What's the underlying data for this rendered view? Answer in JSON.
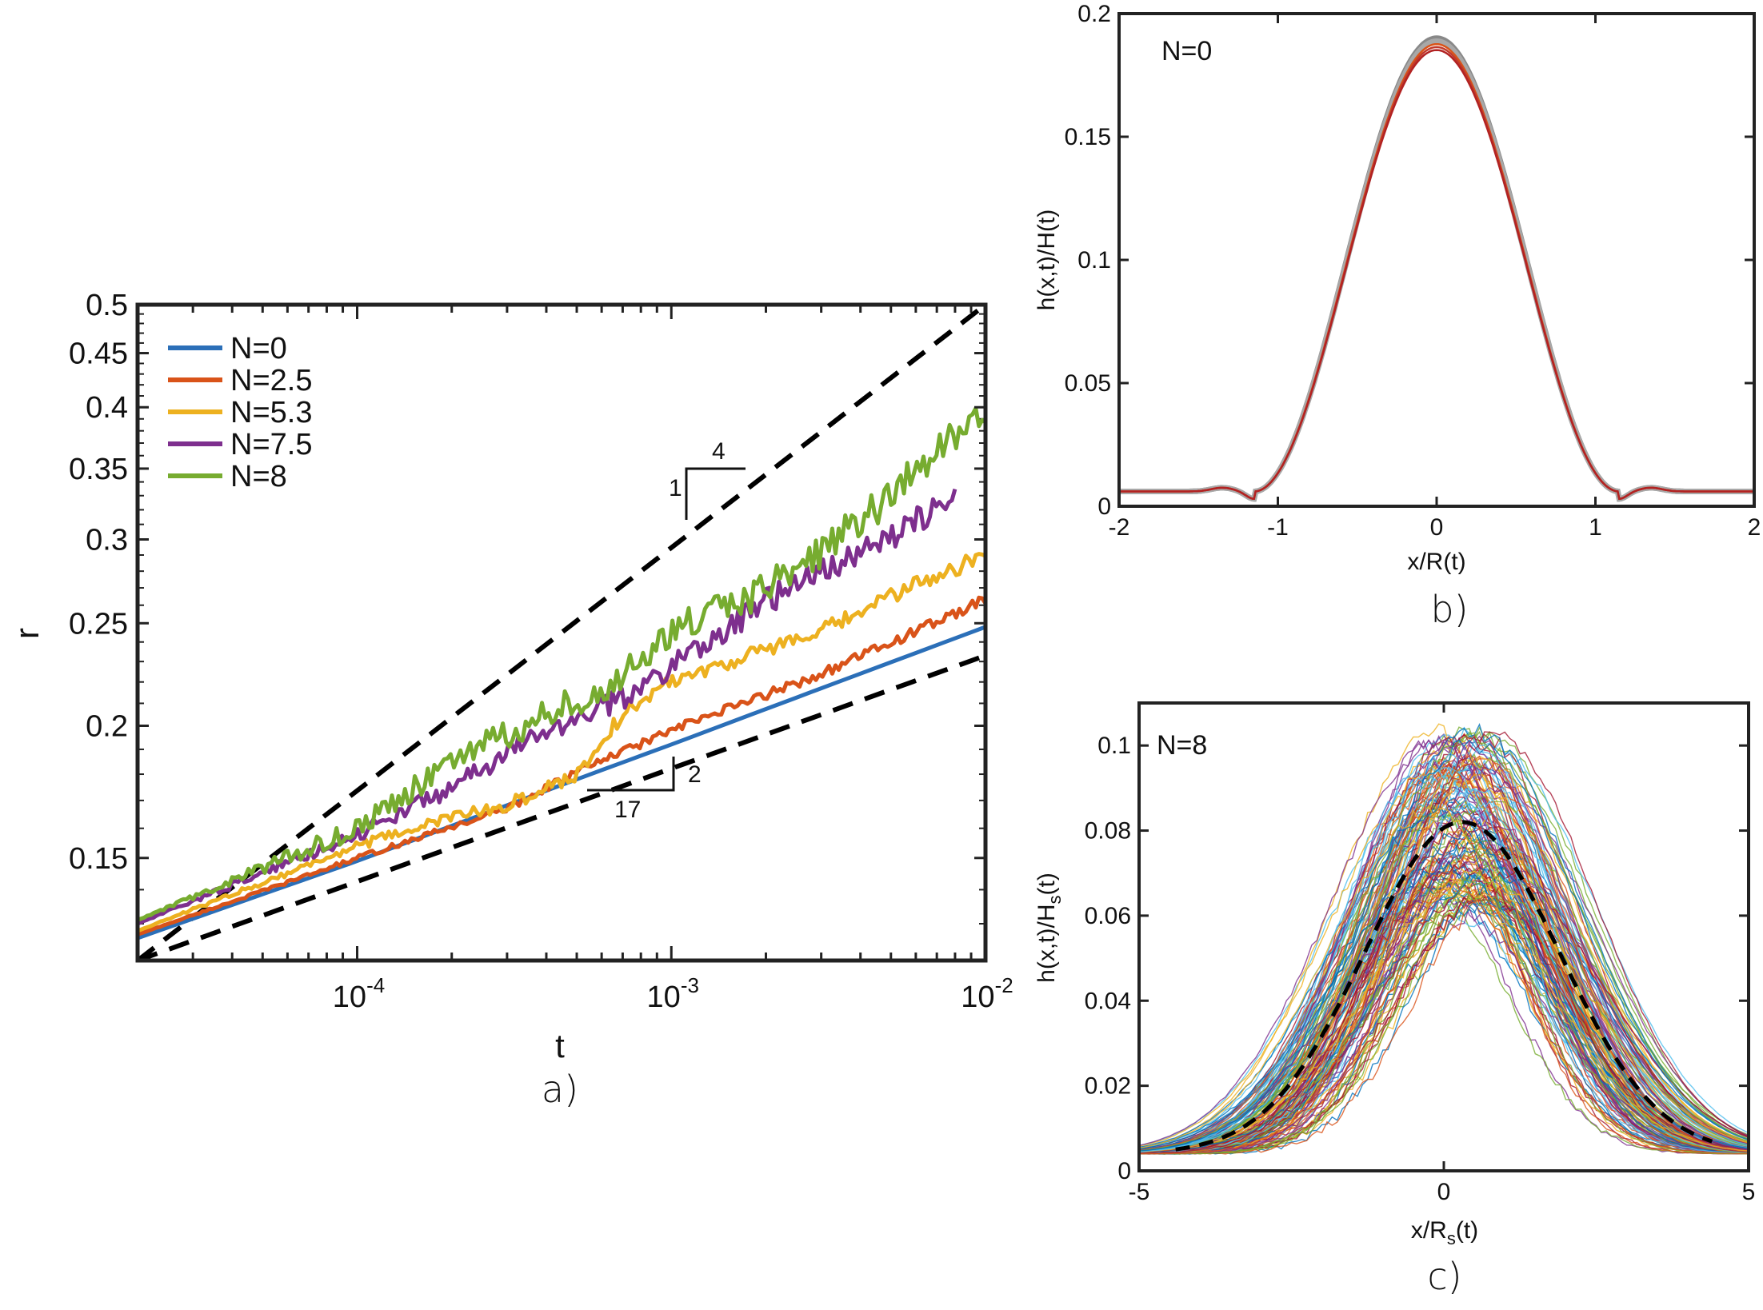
{
  "chart_data": [
    {
      "panel": "a)",
      "type": "line",
      "scale": "log-log",
      "xlabel": "t",
      "ylabel": "r",
      "xlim": [
        2e-05,
        0.01
      ],
      "ylim": [
        0.12,
        0.5
      ],
      "xtick_labels": [
        {
          "value": 0.0001,
          "base": "10",
          "exp": "-4"
        },
        {
          "value": 0.001,
          "base": "10",
          "exp": "-3"
        },
        {
          "value": 0.01,
          "base": "10",
          "exp": "-2"
        }
      ],
      "ytick_values": [
        0.15,
        0.2,
        0.25,
        0.3,
        0.35,
        0.4,
        0.45,
        0.5
      ],
      "ytick_labels": [
        "0.15",
        "0.2",
        "0.25",
        "0.3",
        "0.35",
        "0.4",
        "0.45",
        "0.5"
      ],
      "legend": "top-left",
      "series": [
        {
          "name": "N=0",
          "color": "#2b6fb8",
          "noise": 0,
          "points": [
            [
              2e-05,
              0.126
            ],
            [
              0.0001,
              0.149
            ],
            [
              0.0005,
              0.178
            ],
            [
              0.001,
              0.192
            ],
            [
              0.003,
              0.217
            ],
            [
              0.01,
              0.248
            ]
          ]
        },
        {
          "name": "N=2.5",
          "color": "#d95319",
          "noise": 0.003,
          "points": [
            [
              2e-05,
              0.127
            ],
            [
              0.0001,
              0.15
            ],
            [
              0.0003,
              0.167
            ],
            [
              0.0005,
              0.181
            ],
            [
              0.001,
              0.198
            ],
            [
              0.003,
              0.224
            ],
            [
              0.01,
              0.263
            ]
          ]
        },
        {
          "name": "N=5.3",
          "color": "#edb120",
          "noise": 0.006,
          "points": [
            [
              2e-05,
              0.128
            ],
            [
              0.0001,
              0.154
            ],
            [
              0.0002,
              0.164
            ],
            [
              0.0003,
              0.168
            ],
            [
              0.0005,
              0.18
            ],
            [
              0.0007,
              0.205
            ],
            [
              0.001,
              0.221
            ],
            [
              0.002,
              0.236
            ],
            [
              0.003,
              0.245
            ],
            [
              0.005,
              0.265
            ],
            [
              0.007,
              0.278
            ],
            [
              0.01,
              0.29
            ]
          ]
        },
        {
          "name": "N=7.5",
          "color": "#7e2f8e",
          "noise": 0.01,
          "points": [
            [
              2e-05,
              0.13
            ],
            [
              0.0001,
              0.158
            ],
            [
              0.0002,
              0.175
            ],
            [
              0.0004,
              0.198
            ],
            [
              0.0007,
              0.212
            ],
            [
              0.001,
              0.228
            ],
            [
              0.002,
              0.262
            ],
            [
              0.003,
              0.28
            ],
            [
              0.005,
              0.302
            ],
            [
              0.008,
              0.33
            ]
          ]
        },
        {
          "name": "N=8",
          "color": "#77ac30",
          "noise": 0.014,
          "points": [
            [
              2e-05,
              0.131
            ],
            [
              0.0001,
              0.16
            ],
            [
              0.0002,
              0.185
            ],
            [
              0.0004,
              0.205
            ],
            [
              0.0007,
              0.222
            ],
            [
              0.001,
              0.245
            ],
            [
              0.002,
              0.27
            ],
            [
              0.003,
              0.292
            ],
            [
              0.005,
              0.33
            ],
            [
              0.007,
              0.365
            ],
            [
              0.01,
              0.4
            ]
          ]
        }
      ],
      "reference_lines": [
        {
          "slope_label": "1/4",
          "points": [
            [
              2e-05,
              0.12
            ],
            [
              0.01,
              0.5
            ]
          ]
        },
        {
          "slope_label": "2/17",
          "points": [
            [
              2e-05,
              0.12
            ],
            [
              0.01,
              0.233
            ]
          ]
        }
      ],
      "annotations": {
        "upper_rise": "1",
        "upper_run": "4",
        "lower_rise": "2",
        "lower_run": "17"
      }
    },
    {
      "panel": "b)",
      "type": "line",
      "title_text": "N=0",
      "xlabel": "x/R(t)",
      "ylabel": "h(x,t)/H(t)",
      "xlim": [
        -2,
        2
      ],
      "ylim": [
        0,
        0.2
      ],
      "xticks": [
        -2,
        -1,
        0,
        1,
        2
      ],
      "xtick_labels": [
        "-2",
        "-1",
        "0",
        "1",
        "2"
      ],
      "yticks": [
        0,
        0.05,
        0.1,
        0.15,
        0.2
      ],
      "ytick_labels": [
        "0",
        "0.05",
        "0.1",
        "0.15",
        "0.2"
      ],
      "profile": {
        "peak": 0.19,
        "half_width": 1.15,
        "baseline": 0.006,
        "dip": 0.003
      },
      "curve_colors": [
        "#888888",
        "#a8a8a8",
        "#d95319",
        "#c0392b",
        "#b22222"
      ]
    },
    {
      "panel": "c)",
      "type": "line",
      "title_text": "N=8",
      "xlabel_main": "x/R",
      "xlabel_sub": "s",
      "xlabel_tail": "(t)",
      "ylabel_main": "h(x,t)/H",
      "ylabel_sub": "s",
      "ylabel_tail": "(t)",
      "xlim": [
        -5,
        5
      ],
      "ylim": [
        0,
        0.11
      ],
      "xticks": [
        -5,
        0,
        5
      ],
      "xtick_labels": [
        "-5",
        "0",
        "5"
      ],
      "yticks": [
        0,
        0.02,
        0.04,
        0.06,
        0.08,
        0.1
      ],
      "ytick_labels": [
        "0",
        "0.02",
        "0.04",
        "0.06",
        "0.08",
        "0.1"
      ],
      "mean_profile": {
        "peak": 0.082,
        "center": 0.3,
        "width": 1.6,
        "baseline": 0.004,
        "style": "dashed black"
      },
      "ensemble_count": 150,
      "ensemble_colors": [
        "#0072bd",
        "#d95319",
        "#edb120",
        "#7e2f8e",
        "#77ac30",
        "#4dbeee",
        "#a2142f"
      ]
    }
  ]
}
